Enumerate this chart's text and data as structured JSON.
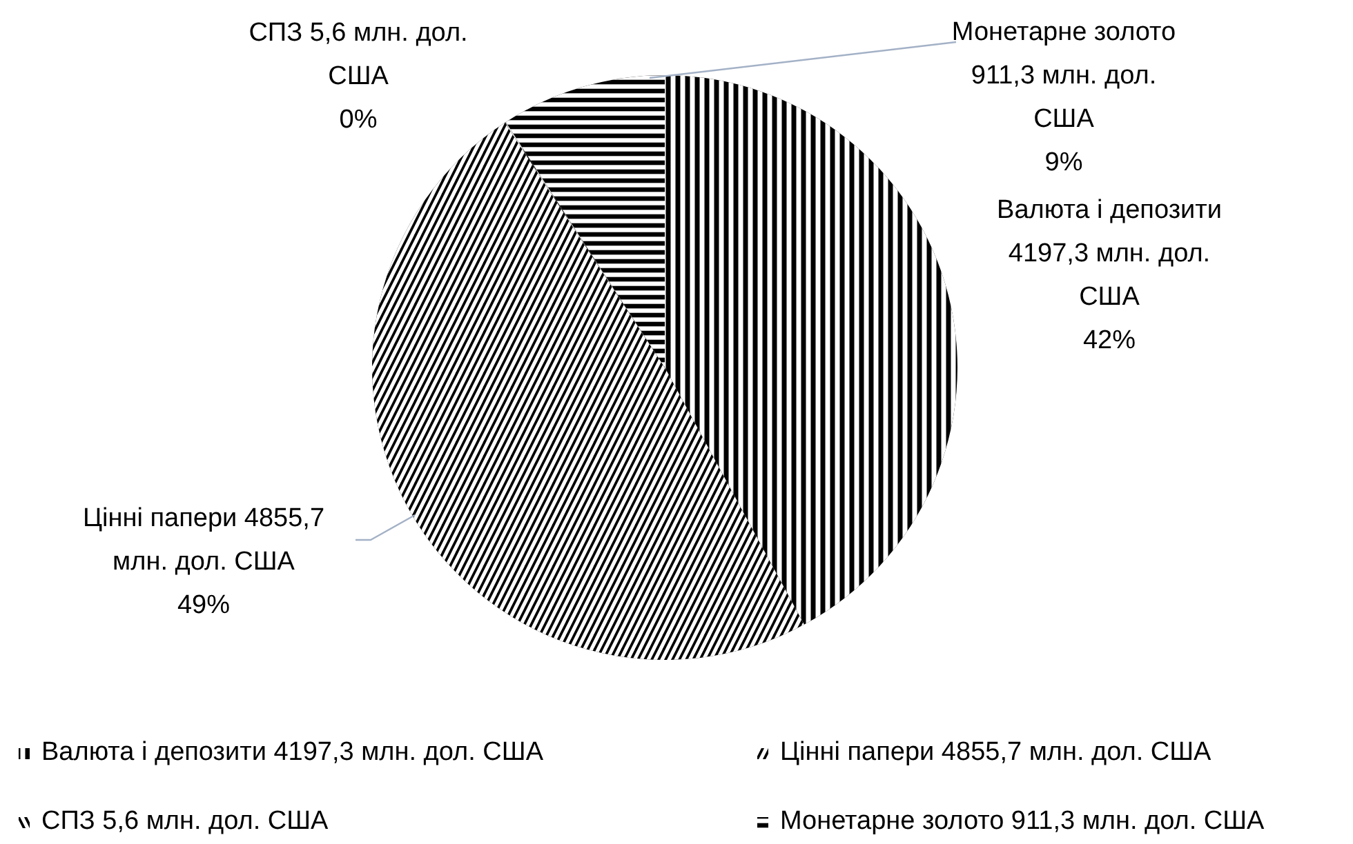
{
  "chart_data": {
    "type": "pie",
    "categories": [
      "Валюта і депозити 4197,3 млн. дол. США",
      "Цінні папери 4855,7 млн. дол. США",
      "СПЗ 5,6 млн. дол. США",
      "Монетарне золото 911,3 млн. дол. США"
    ],
    "values": [
      4197.3,
      4855.7,
      5.6,
      911.3
    ],
    "colors": [
      "#000000",
      "#000000",
      "#000000",
      "#000000"
    ],
    "value_labels": [
      "Валюта і депозити 4197,3 млн. дол. США 42%",
      "Цінні папери 4855,7 млн. дол. США 49%",
      "СПЗ 5,6 млн. дол. США 0%",
      "Монетарне золото 911,3 млн. дол. США 9%"
    ],
    "legend": "bottom"
  }
}
